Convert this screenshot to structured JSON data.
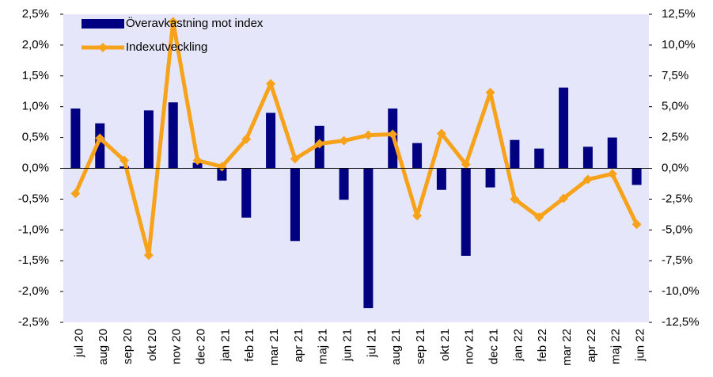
{
  "chart_data": {
    "type": "bar",
    "categories": [
      "jul 20",
      "aug 20",
      "sep 20",
      "okt 20",
      "nov 20",
      "dec 20",
      "jan 21",
      "feb 21",
      "mar 21",
      "apr 21",
      "maj 21",
      "jun 21",
      "jul 21",
      "aug 21",
      "sep 21",
      "okt 21",
      "nov 21",
      "dec 21",
      "jan 22",
      "feb 22",
      "mar 22",
      "apr 22",
      "maj 22",
      "jun 22"
    ],
    "series": [
      {
        "name": "Överavkastning mot index",
        "type": "bar",
        "color": "#000080",
        "values": [
          0.97,
          0.73,
          0.03,
          0.94,
          1.07,
          0.09,
          -0.2,
          -0.8,
          0.9,
          -1.18,
          0.69,
          -0.51,
          -2.27,
          0.97,
          0.41,
          -0.35,
          -1.42,
          -0.31,
          0.46,
          0.32,
          1.31,
          0.35,
          0.5,
          -0.27
        ]
      },
      {
        "name": "Indexutveckling",
        "type": "line",
        "axis": "y2",
        "color": "#f7a21b",
        "values": [
          -2.05,
          2.44,
          0.64,
          -7.05,
          11.9,
          0.64,
          0.13,
          2.37,
          6.86,
          0.77,
          1.99,
          2.24,
          2.69,
          2.76,
          -3.85,
          2.82,
          0.32,
          6.15,
          -2.5,
          -3.97,
          -2.44,
          -0.9,
          -0.45,
          -4.55
        ]
      }
    ],
    "ylim": [
      -2.5,
      2.5
    ],
    "yticks": [
      {
        "value": -2.5,
        "label": "-2,5%"
      },
      {
        "value": -2,
        "label": "-2,0%"
      },
      {
        "value": -1.5,
        "label": "-1,5%"
      },
      {
        "value": -1,
        "label": "-1,0%"
      },
      {
        "value": -0.5,
        "label": "-0,5%"
      },
      {
        "value": 0,
        "label": "0,0%"
      },
      {
        "value": 0.5,
        "label": "0,5%"
      },
      {
        "value": 1,
        "label": "1,0%"
      },
      {
        "value": 1.5,
        "label": "1,5%"
      },
      {
        "value": 2,
        "label": "2,0%"
      },
      {
        "value": 2.5,
        "label": "2,5%"
      }
    ],
    "y2lim": [
      -12.5,
      12.5
    ],
    "y2ticks": [
      {
        "value": -12.5,
        "label": "-12,5%"
      },
      {
        "value": -10,
        "label": "-10,0%"
      },
      {
        "value": -7.5,
        "label": "-7,5%"
      },
      {
        "value": -5,
        "label": "-5,0%"
      },
      {
        "value": -2.5,
        "label": "-2,5%"
      },
      {
        "value": 0,
        "label": "0,0%"
      },
      {
        "value": 2.5,
        "label": "2,5%"
      },
      {
        "value": 5,
        "label": "5,0%"
      },
      {
        "value": 7.5,
        "label": "7,5%"
      },
      {
        "value": 10,
        "label": "10,0%"
      },
      {
        "value": 12.5,
        "label": "12,5%"
      }
    ],
    "plot_background": "#e6e6fa"
  }
}
